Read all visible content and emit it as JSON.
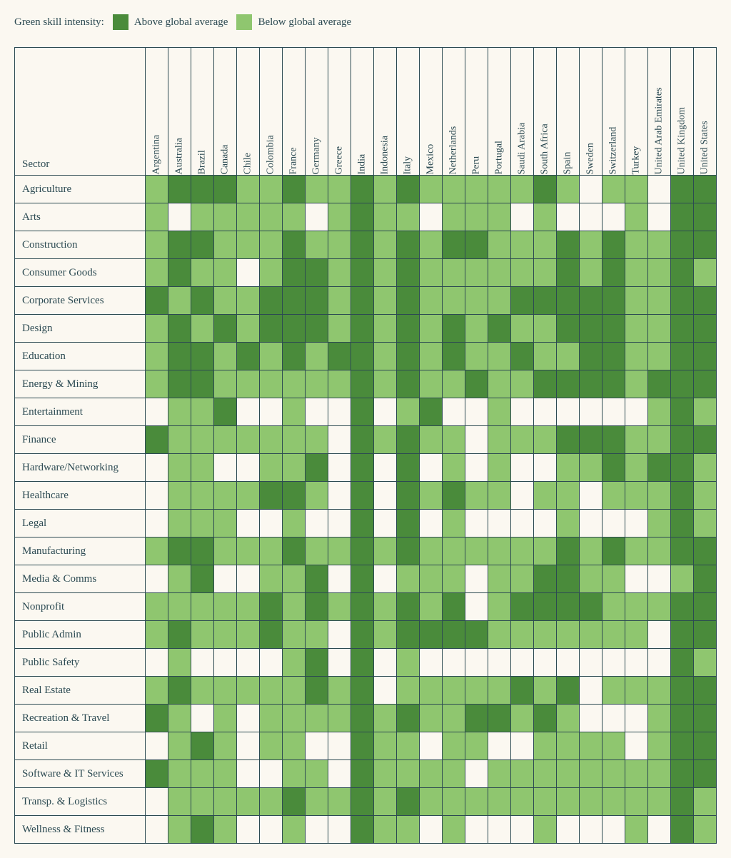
{
  "legend": {
    "title": "Green skill intensity:",
    "above": "Above global average",
    "below": "Below global average"
  },
  "colors": {
    "above": "#4a8b3b",
    "below": "#8fc66f",
    "none": "#fbf8f1",
    "border": "#2c4a52",
    "text": "#2c4a52",
    "background": "#fbf8f1"
  },
  "corner_label": "Sector",
  "countries": [
    "Argentina",
    "Australia",
    "Brazil",
    "Canada",
    "Chile",
    "Colombia",
    "France",
    "Germany",
    "Greece",
    "India",
    "Indonesia",
    "Italy",
    "Mexico",
    "Netherlands",
    "Peru",
    "Portugal",
    "Saudi Arabia",
    "South Africa",
    "Spain",
    "Sweden",
    "Switzerland",
    "Turkey",
    "United Arab Emirates",
    "United Kingdom",
    "United States"
  ],
  "sectors": [
    "Agriculture",
    "Arts",
    "Construction",
    "Consumer Goods",
    "Corporate Services",
    "Design",
    "Education",
    "Energy & Mining",
    "Entertainment",
    "Finance",
    "Hardware/Networking",
    "Healthcare",
    "Legal",
    "Manufacturing",
    "Media & Comms",
    "Nonprofit",
    "Public Admin",
    "Public Safety",
    "Real Estate",
    "Recreation & Travel",
    "Retail",
    "Software & IT Services",
    "Transp. & Logistics",
    "Wellness & Fitness"
  ],
  "matrix": [
    [
      1,
      2,
      2,
      2,
      1,
      1,
      2,
      1,
      1,
      2,
      1,
      2,
      1,
      1,
      1,
      1,
      1,
      2,
      1,
      0,
      1,
      1,
      0,
      2,
      2
    ],
    [
      1,
      0,
      1,
      1,
      1,
      1,
      1,
      0,
      1,
      2,
      1,
      1,
      0,
      1,
      1,
      1,
      0,
      1,
      0,
      0,
      0,
      1,
      0,
      2,
      2
    ],
    [
      1,
      2,
      2,
      1,
      1,
      1,
      2,
      1,
      1,
      2,
      1,
      2,
      1,
      2,
      2,
      1,
      1,
      1,
      2,
      1,
      2,
      1,
      1,
      2,
      2
    ],
    [
      1,
      2,
      1,
      1,
      0,
      1,
      2,
      2,
      1,
      2,
      1,
      2,
      1,
      1,
      1,
      1,
      1,
      1,
      2,
      1,
      2,
      1,
      1,
      2,
      1
    ],
    [
      2,
      1,
      2,
      1,
      1,
      2,
      2,
      2,
      1,
      2,
      1,
      2,
      1,
      1,
      1,
      1,
      2,
      2,
      2,
      2,
      2,
      1,
      1,
      2,
      2
    ],
    [
      1,
      2,
      1,
      2,
      1,
      2,
      2,
      2,
      1,
      2,
      1,
      2,
      1,
      2,
      1,
      2,
      1,
      1,
      2,
      2,
      2,
      1,
      1,
      2,
      2
    ],
    [
      1,
      2,
      2,
      1,
      2,
      1,
      2,
      1,
      2,
      2,
      1,
      2,
      1,
      2,
      1,
      1,
      2,
      1,
      1,
      2,
      2,
      1,
      1,
      2,
      2
    ],
    [
      1,
      2,
      2,
      1,
      1,
      1,
      1,
      1,
      1,
      2,
      1,
      2,
      1,
      1,
      2,
      1,
      1,
      2,
      2,
      2,
      2,
      1,
      2,
      2,
      2
    ],
    [
      0,
      1,
      1,
      2,
      0,
      0,
      1,
      0,
      0,
      2,
      0,
      1,
      2,
      0,
      0,
      1,
      0,
      0,
      0,
      0,
      0,
      0,
      1,
      2,
      1
    ],
    [
      2,
      1,
      1,
      1,
      1,
      1,
      1,
      1,
      0,
      2,
      1,
      2,
      1,
      1,
      0,
      1,
      1,
      1,
      2,
      2,
      2,
      1,
      1,
      2,
      2
    ],
    [
      0,
      1,
      1,
      0,
      0,
      1,
      1,
      2,
      0,
      2,
      0,
      2,
      0,
      1,
      0,
      1,
      0,
      0,
      1,
      1,
      2,
      1,
      2,
      2,
      1
    ],
    [
      0,
      1,
      1,
      1,
      1,
      2,
      2,
      1,
      0,
      2,
      0,
      2,
      1,
      2,
      1,
      1,
      0,
      1,
      1,
      0,
      1,
      1,
      1,
      2,
      1
    ],
    [
      0,
      1,
      1,
      1,
      0,
      0,
      1,
      0,
      0,
      2,
      0,
      2,
      0,
      1,
      0,
      0,
      0,
      0,
      1,
      0,
      0,
      0,
      1,
      2,
      1
    ],
    [
      1,
      2,
      2,
      1,
      1,
      1,
      2,
      1,
      1,
      2,
      1,
      2,
      1,
      1,
      1,
      1,
      1,
      1,
      2,
      1,
      2,
      1,
      1,
      2,
      2
    ],
    [
      0,
      1,
      2,
      0,
      0,
      1,
      1,
      2,
      0,
      2,
      0,
      1,
      1,
      1,
      0,
      1,
      1,
      2,
      2,
      1,
      1,
      0,
      0,
      1,
      2
    ],
    [
      1,
      1,
      1,
      1,
      1,
      2,
      1,
      2,
      1,
      2,
      1,
      2,
      1,
      2,
      0,
      1,
      2,
      2,
      2,
      2,
      1,
      1,
      1,
      2,
      2
    ],
    [
      1,
      2,
      1,
      1,
      1,
      2,
      1,
      1,
      0,
      2,
      1,
      2,
      2,
      2,
      2,
      1,
      1,
      1,
      1,
      1,
      1,
      1,
      0,
      2,
      2
    ],
    [
      0,
      1,
      0,
      0,
      0,
      0,
      1,
      2,
      0,
      2,
      0,
      1,
      0,
      0,
      0,
      0,
      0,
      0,
      0,
      0,
      0,
      0,
      0,
      2,
      1
    ],
    [
      1,
      2,
      1,
      1,
      1,
      1,
      1,
      2,
      1,
      2,
      0,
      1,
      1,
      1,
      1,
      1,
      2,
      1,
      2,
      0,
      1,
      1,
      1,
      2,
      2
    ],
    [
      2,
      1,
      0,
      1,
      0,
      1,
      1,
      1,
      1,
      2,
      1,
      2,
      1,
      1,
      2,
      2,
      1,
      2,
      1,
      0,
      0,
      0,
      1,
      2,
      2
    ],
    [
      0,
      1,
      2,
      1,
      0,
      1,
      1,
      0,
      0,
      2,
      1,
      1,
      0,
      1,
      1,
      0,
      0,
      1,
      1,
      1,
      1,
      0,
      1,
      2,
      2
    ],
    [
      2,
      1,
      1,
      1,
      0,
      0,
      1,
      1,
      0,
      2,
      1,
      1,
      1,
      1,
      0,
      1,
      1,
      1,
      1,
      1,
      1,
      1,
      1,
      2,
      2
    ],
    [
      0,
      1,
      1,
      1,
      1,
      1,
      2,
      1,
      1,
      2,
      1,
      2,
      1,
      1,
      1,
      1,
      1,
      1,
      1,
      1,
      1,
      1,
      1,
      2,
      1
    ],
    [
      0,
      1,
      2,
      1,
      0,
      0,
      1,
      0,
      0,
      2,
      1,
      1,
      0,
      1,
      0,
      0,
      0,
      1,
      0,
      0,
      0,
      1,
      0,
      2,
      1
    ]
  ]
}
